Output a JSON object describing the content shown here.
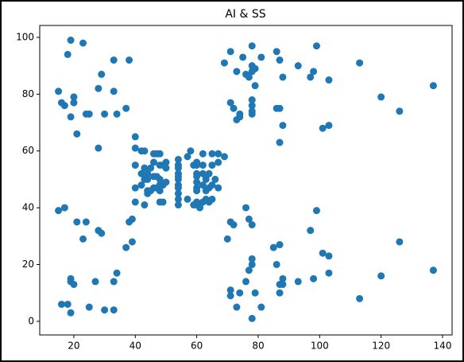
{
  "chart_data": {
    "type": "scatter",
    "title": "AI & SS",
    "color": "#1f77b4",
    "x": [
      19,
      23,
      18,
      33,
      38,
      29,
      15,
      20,
      16,
      17,
      20,
      24,
      25,
      28,
      33,
      30,
      34,
      37,
      19,
      21,
      28,
      15,
      17,
      21,
      24,
      28,
      29,
      23,
      19,
      19,
      20,
      27,
      33,
      34,
      16,
      18,
      25,
      30,
      33,
      19,
      38,
      39,
      37,
      39,
      40,
      40,
      42,
      43,
      46,
      47,
      48,
      40,
      42,
      43,
      44,
      46,
      47,
      48,
      46,
      48,
      44,
      50,
      49,
      50,
      40,
      42,
      43,
      44,
      46,
      47,
      48,
      48,
      49,
      50,
      40,
      43,
      44,
      45,
      49,
      54,
      54,
      54,
      54,
      54,
      54,
      54,
      54,
      54,
      54,
      54,
      57,
      58,
      59,
      60,
      60,
      60,
      60,
      60,
      60,
      60,
      60,
      60,
      61,
      62,
      62,
      62,
      62,
      62,
      63,
      63,
      63,
      63,
      64,
      64,
      64,
      65,
      65,
      65,
      65,
      66,
      67,
      67,
      67,
      69,
      61,
      57,
      59,
      48,
      45,
      69,
      71,
      73,
      74,
      75,
      76,
      78,
      71,
      72,
      73,
      74,
      78,
      78,
      78,
      78,
      79,
      78,
      78,
      79,
      81,
      86,
      87,
      86,
      87,
      88,
      88,
      93,
      97,
      98,
      99,
      101,
      103,
      103,
      113,
      120,
      126,
      137,
      77,
      87,
      70,
      71,
      72,
      76,
      77,
      78,
      71,
      71,
      73,
      74,
      76,
      77,
      78,
      78,
      78,
      79,
      81,
      85,
      86,
      87,
      87,
      87,
      88,
      88,
      93,
      97,
      98,
      99,
      101,
      103,
      103,
      113,
      120,
      126,
      137
    ],
    "values": [
      99,
      98,
      94,
      92,
      92,
      87,
      81,
      79,
      77,
      76,
      77,
      73,
      73,
      82,
      81,
      73,
      73,
      75,
      72,
      66,
      61,
      39,
      40,
      35,
      35,
      32,
      31,
      29,
      14,
      15,
      13,
      14,
      14,
      17,
      6,
      6,
      5,
      4,
      4,
      3,
      35,
      36,
      26,
      28,
      65,
      61,
      60,
      60,
      59,
      59,
      59,
      55,
      52,
      54,
      52,
      56,
      51,
      55,
      51,
      50,
      50,
      56,
      55,
      54,
      47,
      48,
      50,
      46,
      47,
      47,
      48,
      46,
      48,
      49,
      42,
      41,
      45,
      46,
      42,
      57,
      55,
      54,
      52,
      51,
      50,
      48,
      47,
      45,
      43,
      41,
      58,
      60,
      55,
      56,
      55,
      52,
      51,
      49,
      47,
      46,
      42,
      41,
      41,
      42,
      59,
      55,
      52,
      48,
      46,
      43,
      51,
      50,
      52,
      47,
      42,
      59,
      55,
      48,
      43,
      50,
      47,
      56,
      59,
      58,
      40,
      43,
      41,
      42,
      54,
      91,
      95,
      88,
      72,
      93,
      87,
      97,
      77,
      75,
      71,
      73,
      78,
      76,
      74,
      73,
      89,
      88,
      90,
      83,
      93,
      95,
      92,
      75,
      75,
      69,
      86,
      90,
      86,
      88,
      97,
      68,
      69,
      85,
      91,
      79,
      74,
      83,
      86,
      63,
      29,
      35,
      34,
      40,
      36,
      34,
      11,
      9,
      5,
      10,
      14,
      18,
      20,
      22,
      1,
      10,
      5,
      26,
      20,
      27,
      10,
      13,
      15,
      13,
      14,
      32,
      15,
      39,
      24,
      23,
      17,
      8,
      16,
      28,
      18
    ],
    "xlim": [
      8.9,
      143.1
    ],
    "ylim": [
      -4.8,
      104.2
    ],
    "xticks": [
      20,
      40,
      60,
      80,
      100,
      120,
      140
    ],
    "yticks": [
      0,
      20,
      40,
      60,
      80,
      100
    ]
  }
}
